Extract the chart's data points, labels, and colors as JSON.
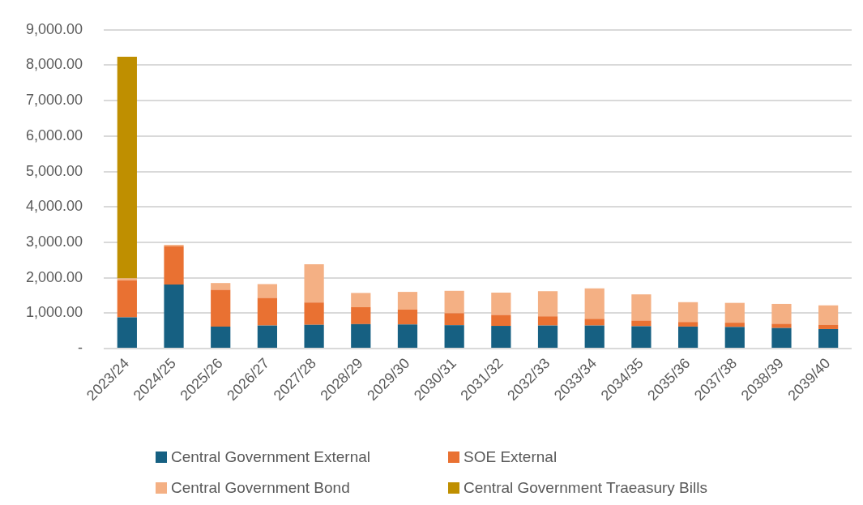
{
  "chart_data": {
    "type": "bar",
    "stacked": true,
    "categories": [
      "2023/24",
      "2024/25",
      "2025/26",
      "2026/27",
      "2027/28",
      "2028/29",
      "2029/30",
      "2030/31",
      "2031/32",
      "2032/33",
      "2033/34",
      "2034/35",
      "2035/36",
      "2037/38",
      "2038/39",
      "2039/40"
    ],
    "series": [
      {
        "name": "Central Government External",
        "color": "#166082",
        "values": [
          880,
          1810,
          620,
          650,
          670,
          690,
          680,
          660,
          640,
          650,
          650,
          630,
          620,
          610,
          580,
          550
        ]
      },
      {
        "name": "SOE External",
        "color": "#e97132",
        "values": [
          1050,
          1080,
          1040,
          780,
          630,
          480,
          420,
          340,
          310,
          260,
          190,
          160,
          130,
          120,
          120,
          120
        ]
      },
      {
        "name": "Central Government Bond",
        "color": "#f4b084",
        "values": [
          50,
          40,
          190,
          390,
          1080,
          400,
          500,
          630,
          630,
          710,
          860,
          740,
          560,
          560,
          560,
          550
        ]
      },
      {
        "name": "Central Government Traeasury Bills",
        "color": "#bf8f00",
        "values": [
          6260,
          null,
          null,
          null,
          null,
          null,
          null,
          null,
          null,
          null,
          null,
          null,
          null,
          null,
          null,
          null
        ]
      }
    ],
    "ylim": [
      0,
      9000
    ],
    "yticks": [
      {
        "value": 0,
        "label": "-"
      },
      {
        "value": 1000,
        "label": "1,000.00"
      },
      {
        "value": 2000,
        "label": "2,000.00"
      },
      {
        "value": 3000,
        "label": "3,000.00"
      },
      {
        "value": 4000,
        "label": "4,000.00"
      },
      {
        "value": 5000,
        "label": "5,000.00"
      },
      {
        "value": 6000,
        "label": "6,000.00"
      },
      {
        "value": 7000,
        "label": "7,000.00"
      },
      {
        "value": 8000,
        "label": "8,000.00"
      },
      {
        "value": 9000,
        "label": "9,000.00"
      }
    ],
    "grid": "y",
    "legend": "bottom"
  }
}
